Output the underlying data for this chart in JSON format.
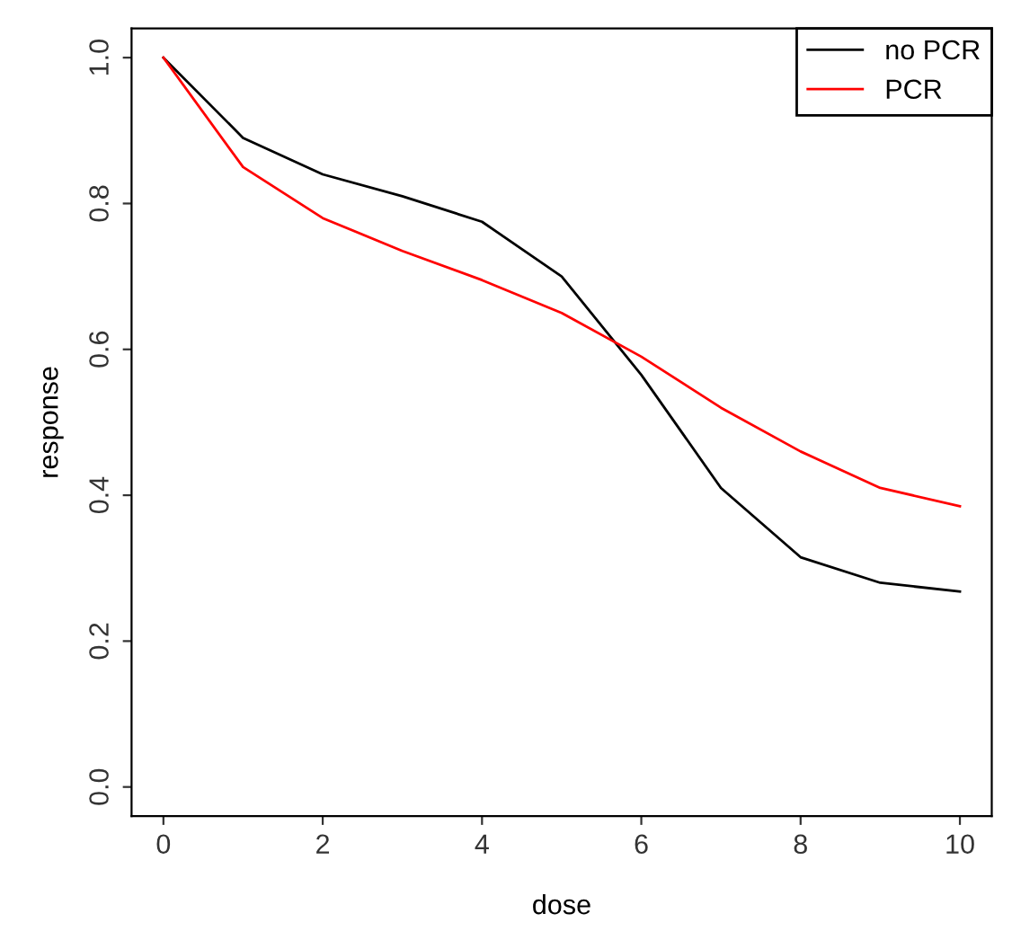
{
  "chart_data": {
    "type": "line",
    "xlabel": "dose",
    "ylabel": "response",
    "x": [
      0,
      1,
      2,
      3,
      4,
      5,
      6,
      7,
      8,
      9,
      10
    ],
    "series": [
      {
        "name": "no PCR",
        "color": "#000000",
        "values": [
          1.0,
          0.89,
          0.84,
          0.81,
          0.775,
          0.7,
          0.565,
          0.41,
          0.315,
          0.28,
          0.268
        ]
      },
      {
        "name": "PCR",
        "color": "#ff0000",
        "values": [
          1.0,
          0.85,
          0.78,
          0.735,
          0.695,
          0.65,
          0.59,
          0.52,
          0.46,
          0.41,
          0.385
        ]
      }
    ],
    "xlim": [
      -0.4,
      10.4
    ],
    "ylim": [
      -0.04,
      1.04
    ],
    "xticks": [
      0,
      2,
      4,
      6,
      8,
      10
    ],
    "yticks": [
      {
        "value": 0,
        "label": "0.0"
      },
      0.2,
      0.4,
      0.6,
      0.8,
      {
        "value": 1,
        "label": "1.0"
      }
    ],
    "grid": false,
    "legend": "top right",
    "marker": "none",
    "line_style": "solid"
  }
}
